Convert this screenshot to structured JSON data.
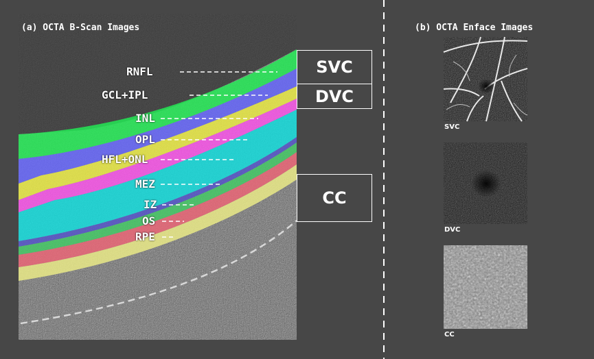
{
  "panels": {
    "bscan_title": "(a) OCTA B-Scan Images",
    "enface_title": "(b) OCTA Enface Images"
  },
  "layers": [
    {
      "label": "RNFL",
      "color": "#22ee55"
    },
    {
      "label": "GCL+IPL",
      "color": "#6666ff"
    },
    {
      "label": "INL",
      "color": "#eeee44"
    },
    {
      "label": "OPL",
      "color": "#ff55ee"
    },
    {
      "label": "HFL+ONL",
      "color": "#11e0e0"
    },
    {
      "label": "MEZ",
      "color": "#5555cc"
    },
    {
      "label": "IZ",
      "color": "#44cc66"
    },
    {
      "label": "OS",
      "color": "#ee6677"
    },
    {
      "label": "RPE",
      "color": "#eeee88"
    }
  ],
  "plexus_boxes": {
    "svc": "SVC",
    "dvc": "DVC",
    "cc": "CC"
  },
  "enface_images": {
    "svc_caption": "SVC",
    "dvc_caption": "DVC",
    "cc_caption": "CC"
  }
}
